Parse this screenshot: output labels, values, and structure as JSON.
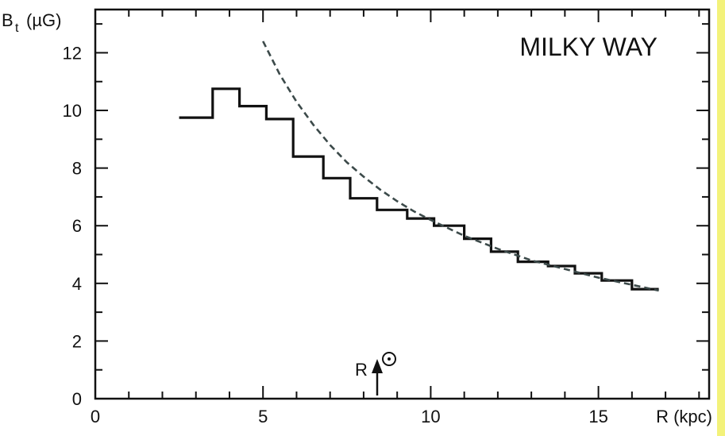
{
  "chart_data": {
    "type": "line",
    "title": "MILKY  WAY",
    "xlabel": "R (kpc)",
    "ylabel": "(µG)",
    "ylabel_symbol": "B",
    "ylabel_subscript": "t",
    "xlim": [
      0,
      18.3
    ],
    "ylim": [
      0,
      13.5
    ],
    "x_ticks": [
      0,
      5,
      10,
      15
    ],
    "y_ticks": [
      0,
      2,
      4,
      6,
      8,
      10,
      12
    ],
    "grid": false,
    "sun_marker": {
      "symbol": "R",
      "x": 8.5
    },
    "series": [
      {
        "style": "step",
        "color": "#111111",
        "bins": [
          {
            "x0": 2.5,
            "x1": 3.5,
            "y": 9.75
          },
          {
            "x0": 3.5,
            "x1": 4.3,
            "y": 10.75
          },
          {
            "x0": 4.3,
            "x1": 5.1,
            "y": 10.15
          },
          {
            "x0": 5.1,
            "x1": 5.9,
            "y": 9.7
          },
          {
            "x0": 5.9,
            "x1": 6.8,
            "y": 8.4
          },
          {
            "x0": 6.8,
            "x1": 7.6,
            "y": 7.65
          },
          {
            "x0": 7.6,
            "x1": 8.4,
            "y": 6.95
          },
          {
            "x0": 8.4,
            "x1": 9.3,
            "y": 6.55
          },
          {
            "x0": 9.3,
            "x1": 10.1,
            "y": 6.25
          },
          {
            "x0": 10.1,
            "x1": 11.0,
            "y": 6.0
          },
          {
            "x0": 11.0,
            "x1": 11.8,
            "y": 5.55
          },
          {
            "x0": 11.8,
            "x1": 12.6,
            "y": 5.1
          },
          {
            "x0": 12.6,
            "x1": 13.5,
            "y": 4.75
          },
          {
            "x0": 13.5,
            "x1": 14.3,
            "y": 4.6
          },
          {
            "x0": 14.3,
            "x1": 15.1,
            "y": 4.35
          },
          {
            "x0": 15.1,
            "x1": 16.0,
            "y": 4.1
          },
          {
            "x0": 16.0,
            "x1": 16.8,
            "y": 3.8
          }
        ]
      },
      {
        "style": "dashed",
        "color": "#3c4a4a",
        "x": [
          5.0,
          5.5,
          6.0,
          6.5,
          7.0,
          7.5,
          8.0,
          8.5,
          9.0,
          9.5,
          10.0,
          11.0,
          12.0,
          13.0,
          14.0,
          15.0,
          16.0,
          16.8
        ],
        "y": [
          12.4,
          11.25,
          10.3,
          9.5,
          8.8,
          8.2,
          7.7,
          7.25,
          6.85,
          6.5,
          6.2,
          5.65,
          5.2,
          4.8,
          4.5,
          4.2,
          3.95,
          3.75
        ]
      }
    ]
  }
}
